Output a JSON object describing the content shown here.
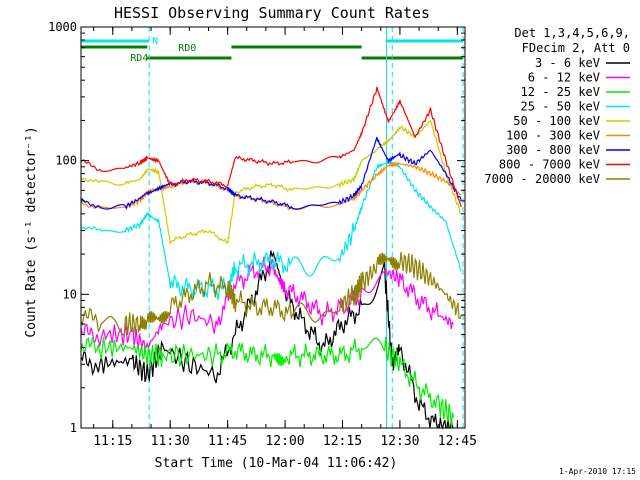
{
  "chart_data": {
    "type": "line",
    "title": "HESSI Observing Summary Count Rates",
    "xlabel": "Start Time (10-Mar-04 11:06:42)",
    "ylabel": "Count Rate (s⁻¹ detector⁻¹)",
    "y_scale": "log",
    "ylim": [
      1,
      1000
    ],
    "xlim": [
      "11:06:42",
      "12:47:00"
    ],
    "x_ticks": [
      "11:15",
      "11:30",
      "11:45",
      "12:00",
      "12:15",
      "12:30",
      "12:45"
    ],
    "y_ticks": [
      "1",
      "10",
      "100",
      "1000"
    ],
    "legend_header": [
      "Det 1,3,4,5,6,9,",
      "FDecim 2, Att 0"
    ],
    "legend_position": "right",
    "footer": "1-Apr-2010 17:15",
    "flag_bars": [
      {
        "label": "N",
        "color": "#00e5ee",
        "segments": [
          [
            "11:06:42",
            "11:24:30"
          ],
          [
            "12:26:30",
            "12:46:30"
          ]
        ]
      },
      {
        "label": "RD0",
        "color": "#007f00",
        "segments": [
          [
            "11:06:42",
            "11:24:00"
          ],
          [
            "11:46:00",
            "12:20:00"
          ]
        ]
      },
      {
        "label": "RD4",
        "color": "#007f00",
        "segments": [
          [
            "11:24:00",
            "11:46:00"
          ],
          [
            "12:20:00",
            "12:46:30"
          ]
        ]
      }
    ],
    "vertical_markers": [
      {
        "time": "11:06:42",
        "color": "#00e5ee",
        "style": "solid"
      },
      {
        "time": "11:24:30",
        "color": "#00e5ee",
        "style": "dashed"
      },
      {
        "time": "12:26:30",
        "color": "#00e5ee",
        "style": "solid"
      },
      {
        "time": "12:28:00",
        "color": "#00e5ee",
        "style": "dashed"
      },
      {
        "time": "12:46:30",
        "color": "#00e5ee",
        "style": "dashed"
      }
    ],
    "series": [
      {
        "name": "3 - 6 keV",
        "color": "#000000",
        "x": [
          "11:06:42",
          "11:12",
          "11:20",
          "11:24",
          "11:28",
          "11:35",
          "11:42",
          "11:47",
          "11:52",
          "11:57",
          "12:00",
          "12:05",
          "12:10",
          "12:15",
          "12:20",
          "12:26",
          "12:28",
          "12:30",
          "12:35",
          "12:40",
          "12:44"
        ],
        "y": [
          3.2,
          3.0,
          3.2,
          2.5,
          4.0,
          3.0,
          2.5,
          5.0,
          10,
          20,
          10,
          6,
          4,
          6,
          8,
          15,
          3,
          4,
          1.5,
          1.0,
          1.0
        ]
      },
      {
        "name": "6 - 12 keV",
        "color": "#ff00ff",
        "x": [
          "11:06:42",
          "11:12",
          "11:20",
          "11:24",
          "11:28",
          "11:35",
          "11:42",
          "11:47",
          "11:52",
          "11:57",
          "12:00",
          "12:05",
          "12:10",
          "12:15",
          "12:20",
          "12:26",
          "12:30",
          "12:35",
          "12:40",
          "12:44"
        ],
        "y": [
          5,
          5,
          5,
          4,
          6,
          7,
          6,
          12,
          15,
          17,
          11,
          9,
          7,
          8,
          10,
          15,
          13,
          9,
          7,
          6
        ]
      },
      {
        "name": "12 - 25 keV",
        "color": "#00ee00",
        "x": [
          "11:06:42",
          "11:12",
          "11:20",
          "11:24",
          "11:28",
          "11:35",
          "11:42",
          "11:47",
          "11:52",
          "11:57",
          "12:00",
          "12:05",
          "12:10",
          "12:15",
          "12:20",
          "12:26",
          "12:30",
          "12:35",
          "12:40",
          "12:44"
        ],
        "y": [
          4,
          4,
          4,
          3.5,
          3.5,
          3.5,
          3.5,
          3.8,
          3.5,
          3.5,
          3.5,
          3.5,
          3.5,
          3.5,
          4,
          4,
          3,
          2,
          1.5,
          1.2
        ]
      },
      {
        "name": "25 - 50 keV",
        "color": "#00e5ee",
        "x": [
          "11:06:42",
          "11:12",
          "11:18",
          "11:22",
          "11:24",
          "11:27",
          "11:30",
          "11:35",
          "11:40",
          "11:45",
          "11:47",
          "11:52",
          "11:57",
          "12:02",
          "12:08",
          "12:14",
          "12:18",
          "12:20",
          "12:24",
          "12:27",
          "12:30",
          "12:34",
          "12:38",
          "12:42",
          "12:46"
        ],
        "y": [
          32,
          30,
          30,
          33,
          40,
          36,
          12,
          11,
          11,
          11,
          16,
          17,
          18,
          16,
          17,
          18,
          30,
          45,
          90,
          100,
          90,
          60,
          45,
          35,
          15
        ]
      },
      {
        "name": "50 - 100 keV",
        "color": "#cccc00",
        "x": [
          "11:06:42",
          "11:12",
          "11:18",
          "11:22",
          "11:24",
          "11:27",
          "11:30",
          "11:35",
          "11:40",
          "11:45",
          "11:47",
          "11:52",
          "11:57",
          "12:02",
          "12:08",
          "12:14",
          "12:18",
          "12:20",
          "12:24",
          "12:27",
          "12:30",
          "12:34",
          "12:38",
          "12:42",
          "12:46"
        ],
        "y": [
          75,
          68,
          68,
          72,
          85,
          82,
          25,
          28,
          30,
          24,
          58,
          64,
          66,
          60,
          63,
          66,
          72,
          100,
          120,
          140,
          180,
          150,
          200,
          80,
          40
        ]
      },
      {
        "name": "100 - 300 keV",
        "color": "#ff8c00",
        "x": [
          "11:06:42",
          "11:12",
          "11:18",
          "11:22",
          "11:24",
          "11:27",
          "11:30",
          "11:35",
          "11:40",
          "11:45",
          "11:47",
          "11:52",
          "11:57",
          "12:02",
          "12:08",
          "12:14",
          "12:18",
          "12:20",
          "12:24",
          "12:27",
          "12:30",
          "12:34",
          "12:38",
          "12:42",
          "12:46"
        ],
        "y": [
          48,
          44,
          44,
          50,
          58,
          60,
          64,
          70,
          68,
          60,
          54,
          52,
          48,
          44,
          45,
          47,
          52,
          60,
          78,
          90,
          95,
          90,
          80,
          70,
          55
        ]
      },
      {
        "name": "300 - 800 keV",
        "color": "#0000ff",
        "x": [
          "11:06:42",
          "11:12",
          "11:18",
          "11:22",
          "11:24",
          "11:27",
          "11:30",
          "11:35",
          "11:40",
          "11:45",
          "11:47",
          "11:52",
          "11:57",
          "12:02",
          "12:08",
          "12:14",
          "12:18",
          "12:20",
          "12:24",
          "12:27",
          "12:30",
          "12:34",
          "12:38",
          "12:42",
          "12:46"
        ],
        "y": [
          50,
          45,
          45,
          52,
          58,
          62,
          66,
          70,
          68,
          62,
          55,
          52,
          49,
          45,
          46,
          48,
          55,
          65,
          150,
          100,
          110,
          95,
          120,
          80,
          50
        ]
      },
      {
        "name": "800 - 7000 keV",
        "color": "#ff0000",
        "x": [
          "11:06:42",
          "11:12",
          "11:18",
          "11:22",
          "11:24",
          "11:27",
          "11:30",
          "11:35",
          "11:40",
          "11:45",
          "11:47",
          "11:52",
          "11:57",
          "12:02",
          "12:08",
          "12:14",
          "12:18",
          "12:20",
          "12:24",
          "12:27",
          "12:30",
          "12:34",
          "12:38",
          "12:42",
          "12:46"
        ],
        "y": [
          100,
          85,
          88,
          96,
          105,
          102,
          66,
          72,
          70,
          65,
          105,
          100,
          95,
          98,
          100,
          105,
          120,
          160,
          350,
          200,
          280,
          150,
          240,
          100,
          45
        ]
      },
      {
        "name": "7000 - 20000 keV",
        "color": "#8b8000",
        "x": [
          "11:06:42",
          "11:12",
          "11:18",
          "11:22",
          "11:24",
          "11:27",
          "11:30",
          "11:35",
          "11:40",
          "11:45",
          "11:47",
          "11:52",
          "11:57",
          "12:02",
          "12:08",
          "12:14",
          "12:18",
          "12:20",
          "12:24",
          "12:27",
          "12:30",
          "12:34",
          "12:38",
          "12:42",
          "12:46"
        ],
        "y": [
          7,
          6,
          6,
          6,
          6,
          6.5,
          8,
          10,
          12,
          11,
          9,
          8,
          8,
          7,
          7,
          8,
          10,
          12,
          16,
          18,
          18,
          16,
          13,
          10,
          7
        ]
      }
    ]
  }
}
